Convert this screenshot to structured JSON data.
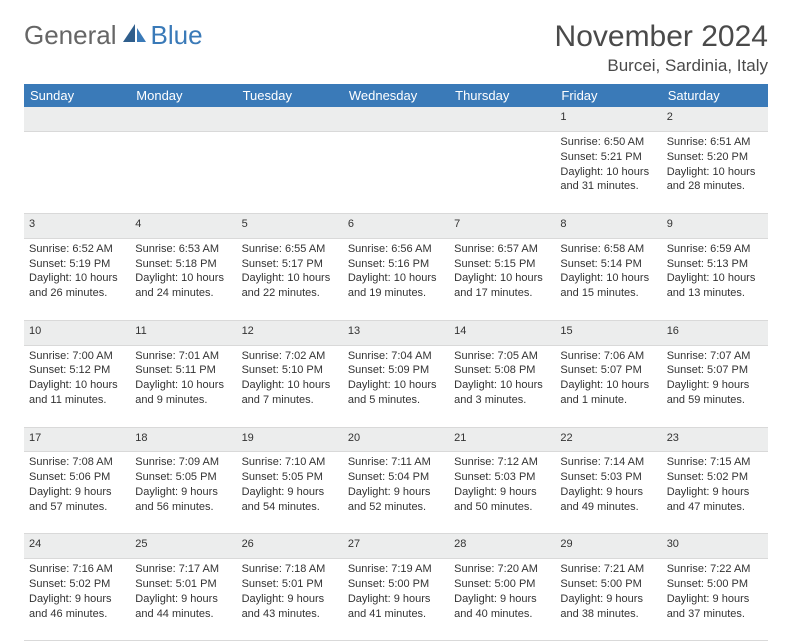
{
  "logo": {
    "part1": "General",
    "part2": "Blue"
  },
  "title": "November 2024",
  "location": "Burcei, Sardinia, Italy",
  "colors": {
    "header_bg": "#3a7ab8",
    "daynum_bg": "#eceded",
    "text": "#333333",
    "title_text": "#4a4a4a"
  },
  "weekdays": [
    "Sunday",
    "Monday",
    "Tuesday",
    "Wednesday",
    "Thursday",
    "Friday",
    "Saturday"
  ],
  "weeks": [
    [
      null,
      null,
      null,
      null,
      null,
      {
        "n": "1",
        "sr": "Sunrise: 6:50 AM",
        "ss": "Sunset: 5:21 PM",
        "d1": "Daylight: 10 hours",
        "d2": "and 31 minutes."
      },
      {
        "n": "2",
        "sr": "Sunrise: 6:51 AM",
        "ss": "Sunset: 5:20 PM",
        "d1": "Daylight: 10 hours",
        "d2": "and 28 minutes."
      }
    ],
    [
      {
        "n": "3",
        "sr": "Sunrise: 6:52 AM",
        "ss": "Sunset: 5:19 PM",
        "d1": "Daylight: 10 hours",
        "d2": "and 26 minutes."
      },
      {
        "n": "4",
        "sr": "Sunrise: 6:53 AM",
        "ss": "Sunset: 5:18 PM",
        "d1": "Daylight: 10 hours",
        "d2": "and 24 minutes."
      },
      {
        "n": "5",
        "sr": "Sunrise: 6:55 AM",
        "ss": "Sunset: 5:17 PM",
        "d1": "Daylight: 10 hours",
        "d2": "and 22 minutes."
      },
      {
        "n": "6",
        "sr": "Sunrise: 6:56 AM",
        "ss": "Sunset: 5:16 PM",
        "d1": "Daylight: 10 hours",
        "d2": "and 19 minutes."
      },
      {
        "n": "7",
        "sr": "Sunrise: 6:57 AM",
        "ss": "Sunset: 5:15 PM",
        "d1": "Daylight: 10 hours",
        "d2": "and 17 minutes."
      },
      {
        "n": "8",
        "sr": "Sunrise: 6:58 AM",
        "ss": "Sunset: 5:14 PM",
        "d1": "Daylight: 10 hours",
        "d2": "and 15 minutes."
      },
      {
        "n": "9",
        "sr": "Sunrise: 6:59 AM",
        "ss": "Sunset: 5:13 PM",
        "d1": "Daylight: 10 hours",
        "d2": "and 13 minutes."
      }
    ],
    [
      {
        "n": "10",
        "sr": "Sunrise: 7:00 AM",
        "ss": "Sunset: 5:12 PM",
        "d1": "Daylight: 10 hours",
        "d2": "and 11 minutes."
      },
      {
        "n": "11",
        "sr": "Sunrise: 7:01 AM",
        "ss": "Sunset: 5:11 PM",
        "d1": "Daylight: 10 hours",
        "d2": "and 9 minutes."
      },
      {
        "n": "12",
        "sr": "Sunrise: 7:02 AM",
        "ss": "Sunset: 5:10 PM",
        "d1": "Daylight: 10 hours",
        "d2": "and 7 minutes."
      },
      {
        "n": "13",
        "sr": "Sunrise: 7:04 AM",
        "ss": "Sunset: 5:09 PM",
        "d1": "Daylight: 10 hours",
        "d2": "and 5 minutes."
      },
      {
        "n": "14",
        "sr": "Sunrise: 7:05 AM",
        "ss": "Sunset: 5:08 PM",
        "d1": "Daylight: 10 hours",
        "d2": "and 3 minutes."
      },
      {
        "n": "15",
        "sr": "Sunrise: 7:06 AM",
        "ss": "Sunset: 5:07 PM",
        "d1": "Daylight: 10 hours",
        "d2": "and 1 minute."
      },
      {
        "n": "16",
        "sr": "Sunrise: 7:07 AM",
        "ss": "Sunset: 5:07 PM",
        "d1": "Daylight: 9 hours",
        "d2": "and 59 minutes."
      }
    ],
    [
      {
        "n": "17",
        "sr": "Sunrise: 7:08 AM",
        "ss": "Sunset: 5:06 PM",
        "d1": "Daylight: 9 hours",
        "d2": "and 57 minutes."
      },
      {
        "n": "18",
        "sr": "Sunrise: 7:09 AM",
        "ss": "Sunset: 5:05 PM",
        "d1": "Daylight: 9 hours",
        "d2": "and 56 minutes."
      },
      {
        "n": "19",
        "sr": "Sunrise: 7:10 AM",
        "ss": "Sunset: 5:05 PM",
        "d1": "Daylight: 9 hours",
        "d2": "and 54 minutes."
      },
      {
        "n": "20",
        "sr": "Sunrise: 7:11 AM",
        "ss": "Sunset: 5:04 PM",
        "d1": "Daylight: 9 hours",
        "d2": "and 52 minutes."
      },
      {
        "n": "21",
        "sr": "Sunrise: 7:12 AM",
        "ss": "Sunset: 5:03 PM",
        "d1": "Daylight: 9 hours",
        "d2": "and 50 minutes."
      },
      {
        "n": "22",
        "sr": "Sunrise: 7:14 AM",
        "ss": "Sunset: 5:03 PM",
        "d1": "Daylight: 9 hours",
        "d2": "and 49 minutes."
      },
      {
        "n": "23",
        "sr": "Sunrise: 7:15 AM",
        "ss": "Sunset: 5:02 PM",
        "d1": "Daylight: 9 hours",
        "d2": "and 47 minutes."
      }
    ],
    [
      {
        "n": "24",
        "sr": "Sunrise: 7:16 AM",
        "ss": "Sunset: 5:02 PM",
        "d1": "Daylight: 9 hours",
        "d2": "and 46 minutes."
      },
      {
        "n": "25",
        "sr": "Sunrise: 7:17 AM",
        "ss": "Sunset: 5:01 PM",
        "d1": "Daylight: 9 hours",
        "d2": "and 44 minutes."
      },
      {
        "n": "26",
        "sr": "Sunrise: 7:18 AM",
        "ss": "Sunset: 5:01 PM",
        "d1": "Daylight: 9 hours",
        "d2": "and 43 minutes."
      },
      {
        "n": "27",
        "sr": "Sunrise: 7:19 AM",
        "ss": "Sunset: 5:00 PM",
        "d1": "Daylight: 9 hours",
        "d2": "and 41 minutes."
      },
      {
        "n": "28",
        "sr": "Sunrise: 7:20 AM",
        "ss": "Sunset: 5:00 PM",
        "d1": "Daylight: 9 hours",
        "d2": "and 40 minutes."
      },
      {
        "n": "29",
        "sr": "Sunrise: 7:21 AM",
        "ss": "Sunset: 5:00 PM",
        "d1": "Daylight: 9 hours",
        "d2": "and 38 minutes."
      },
      {
        "n": "30",
        "sr": "Sunrise: 7:22 AM",
        "ss": "Sunset: 5:00 PM",
        "d1": "Daylight: 9 hours",
        "d2": "and 37 minutes."
      }
    ]
  ]
}
